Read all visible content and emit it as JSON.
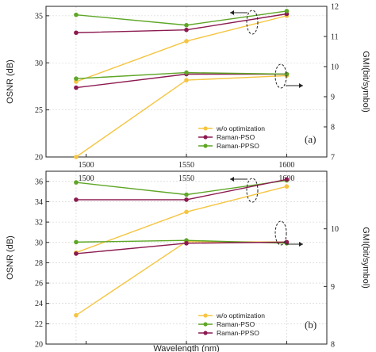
{
  "chart_data": [
    {
      "type": "line",
      "panel_label": "(a)",
      "categories": [
        "1500",
        "1550",
        "1600"
      ],
      "x": [
        1495,
        1550,
        1600
      ],
      "xlim": [
        1480,
        1620
      ],
      "left_axis": {
        "label": "OSNR (dB)",
        "ylim": [
          20,
          36
        ],
        "ticks": [
          "20",
          "25",
          "30",
          "35"
        ]
      },
      "right_axis": {
        "label": "GMI(bit/symbol)",
        "ylim": [
          7,
          12
        ],
        "ticks": [
          "7",
          "8",
          "9",
          "10",
          "11",
          "12"
        ]
      },
      "legend": {
        "placement": "bottom-right",
        "entries": [
          "w/o optimization",
          "Raman-PSO",
          "Raman-PPSO"
        ]
      },
      "series": [
        {
          "name": "w/o optimization",
          "color": "#f5c542",
          "axis": "left",
          "values": [
            28.0,
            32.3,
            35.0
          ]
        },
        {
          "name": "w/o optimization",
          "color": "#f5c542",
          "axis": "right",
          "values": [
            7.0,
            9.55,
            9.7
          ]
        },
        {
          "name": "Raman-PSO",
          "color": "#8b1a50",
          "axis": "left",
          "values": [
            33.2,
            33.5,
            35.2
          ]
        },
        {
          "name": "Raman-PSO",
          "color": "#8b1a50",
          "axis": "right",
          "values": [
            9.3,
            9.75,
            9.75
          ]
        },
        {
          "name": "Raman-PPSO",
          "color": "#5ea626",
          "axis": "left",
          "values": [
            35.1,
            34.0,
            35.5
          ]
        },
        {
          "name": "Raman-PPSO",
          "color": "#5ea626",
          "axis": "right",
          "values": [
            9.6,
            9.8,
            9.75
          ]
        }
      ]
    },
    {
      "type": "line",
      "panel_label": "(b)",
      "categories": [
        "1500",
        "1550",
        "1600"
      ],
      "x": [
        1495,
        1550,
        1600
      ],
      "xlim": [
        1480,
        1620
      ],
      "xlabel": "Wavelength (nm)",
      "left_axis": {
        "label": "OSNR (dB)",
        "ylim": [
          20,
          37
        ],
        "ticks": [
          "20",
          "22",
          "24",
          "26",
          "28",
          "30",
          "32",
          "34",
          "36"
        ]
      },
      "right_axis": {
        "label": "GMI(bit/symbol)",
        "ylim": [
          8,
          11
        ],
        "ticks": [
          "8",
          "9",
          "10"
        ]
      },
      "legend": {
        "placement": "bottom-right",
        "entries": [
          "w/o optimization",
          "Raman-PSO",
          "Raman-PPSO"
        ]
      },
      "series": [
        {
          "name": "w/o optimization",
          "color": "#f5c542",
          "axis": "left",
          "values": [
            29.0,
            33.0,
            35.5
          ]
        },
        {
          "name": "w/o optimization",
          "color": "#f5c542",
          "axis": "right",
          "values": [
            8.5,
            9.78,
            9.77
          ]
        },
        {
          "name": "Raman-PSO",
          "color": "#5ea626",
          "axis": "left",
          "values": [
            35.9,
            34.7,
            36.1
          ]
        },
        {
          "name": "Raman-PSO",
          "color": "#5ea626",
          "axis": "right",
          "values": [
            9.77,
            9.8,
            9.75
          ]
        },
        {
          "name": "Raman-PPSO",
          "color": "#8b1a50",
          "axis": "left",
          "values": [
            34.2,
            34.2,
            36.2
          ]
        },
        {
          "name": "Raman-PPSO",
          "color": "#8b1a50",
          "axis": "right",
          "values": [
            9.57,
            9.75,
            9.77
          ]
        }
      ]
    }
  ]
}
